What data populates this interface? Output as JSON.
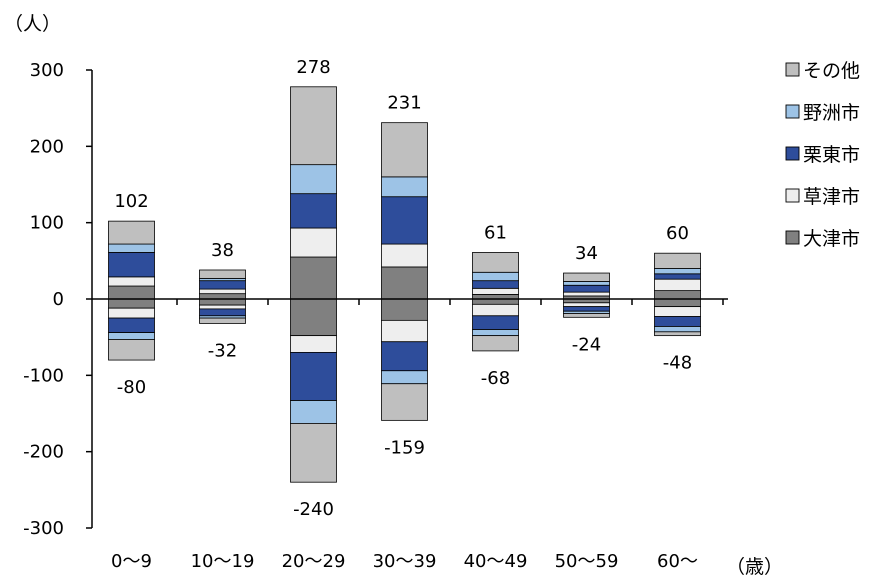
{
  "chart_data": {
    "type": "bar",
    "stacked": "diverging",
    "yunit": "（人）",
    "xunit": "（歳）",
    "ylim": [
      -300,
      300
    ],
    "yticks": [
      "300",
      "200",
      "100",
      "0",
      "-100",
      "-200",
      "-300"
    ],
    "categories": [
      "0〜9",
      "10〜19",
      "20〜29",
      "30〜39",
      "40〜49",
      "50〜59",
      "60〜"
    ],
    "legend_position": "right",
    "series": [
      {
        "name": "大津市",
        "color": "#808080",
        "positive": [
          17,
          7,
          55,
          42,
          6,
          4,
          11
        ],
        "negative": [
          -12,
          -8,
          -48,
          -28,
          -7,
          -5,
          -10
        ]
      },
      {
        "name": "草津市",
        "color": "#eeeeee",
        "positive": [
          12,
          6,
          38,
          30,
          8,
          5,
          15
        ],
        "negative": [
          -13,
          -5,
          -22,
          -28,
          -15,
          -5,
          -13
        ]
      },
      {
        "name": "栗東市",
        "color": "#2e4d9b",
        "positive": [
          32,
          11,
          45,
          62,
          10,
          9,
          7
        ],
        "negative": [
          -19,
          -9,
          -63,
          -38,
          -18,
          -6,
          -13
        ]
      },
      {
        "name": "野洲市",
        "color": "#9dc3e6",
        "positive": [
          11,
          3,
          38,
          26,
          11,
          5,
          7
        ],
        "negative": [
          -9,
          -3,
          -30,
          -17,
          -8,
          -3,
          -7
        ]
      },
      {
        "name": "その他",
        "color": "#bfbfbf",
        "positive": [
          30,
          11,
          102,
          71,
          26,
          11,
          20
        ],
        "negative": [
          -27,
          -7,
          -77,
          -48,
          -20,
          -5,
          -5
        ]
      }
    ],
    "totals": {
      "positive": [
        "102",
        "38",
        "278",
        "231",
        "61",
        "34",
        "60"
      ],
      "negative": [
        "-80",
        "-32",
        "-240",
        "-159",
        "-68",
        "-24",
        "-48"
      ]
    }
  }
}
